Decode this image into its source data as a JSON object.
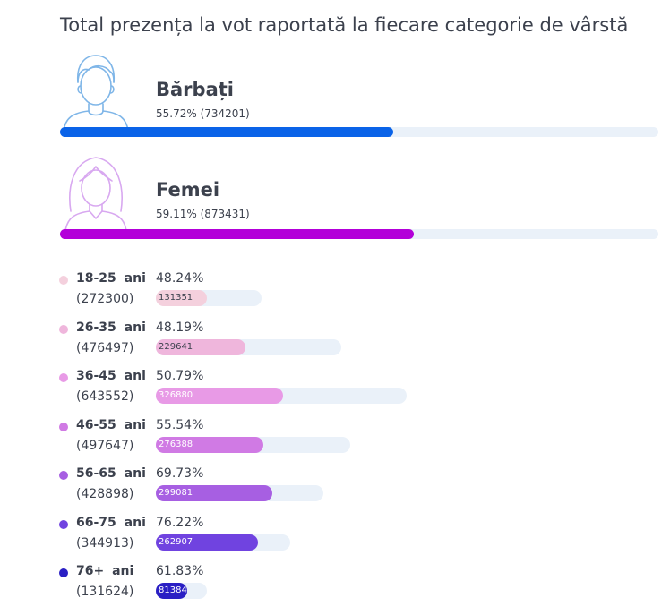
{
  "title": "Total prezența la vot raportată la fiecare categorie de vârstă",
  "colors": {
    "male": "#0a63e8",
    "female": "#b300d9",
    "male_icon": "#7fb6e8",
    "female_icon": "#d8a8f0",
    "track": "#eaf1f9"
  },
  "genders": {
    "male": {
      "name": "Bărbați",
      "stat": "55.72% (734201)",
      "percent": 55.72,
      "icon": "man-icon"
    },
    "female": {
      "name": "Femei",
      "stat": "59.11% (873431)",
      "percent": 59.11,
      "icon": "woman-icon"
    }
  },
  "chart_data": {
    "type": "bar",
    "title": "Total prezența la vot raportată la fiecare categorie de vârstă",
    "categories": [
      "18-25 ani",
      "26-35 ani",
      "36-45 ani",
      "46-55 ani",
      "56-65 ani",
      "66-75 ani",
      "76+ ani"
    ],
    "age_groups": [
      {
        "label": "18-25 ani",
        "percent_label": "48.24%",
        "percent": 48.24,
        "total_label": "(272300)",
        "total": 272300,
        "votes_label": "131351",
        "votes": 131351,
        "color": "#f4d0dd"
      },
      {
        "label": "26-35 ani",
        "percent_label": "48.19%",
        "percent": 48.19,
        "total_label": "(476497)",
        "total": 476497,
        "votes_label": "229641",
        "votes": 229641,
        "color": "#efb6dc"
      },
      {
        "label": "36-45 ani",
        "percent_label": "50.79%",
        "percent": 50.79,
        "total_label": "(643552)",
        "total": 643552,
        "votes_label": "326880",
        "votes": 326880,
        "color": "#e89ae6"
      },
      {
        "label": "46-55 ani",
        "percent_label": "55.54%",
        "percent": 55.54,
        "total_label": "(497647)",
        "total": 497647,
        "votes_label": "276388",
        "votes": 276388,
        "color": "#d07ae4"
      },
      {
        "label": "56-65 ani",
        "percent_label": "69.73%",
        "percent": 69.73,
        "total_label": "(428898)",
        "total": 428898,
        "votes_label": "299081",
        "votes": 299081,
        "color": "#a75fe2"
      },
      {
        "label": "66-75 ani",
        "percent_label": "76.22%",
        "percent": 76.22,
        "total_label": "(344913)",
        "total": 344913,
        "votes_label": "262907",
        "votes": 262907,
        "color": "#7043e0"
      },
      {
        "label": "76+ ani",
        "percent_label": "61.83%",
        "percent": 61.83,
        "total_label": "(131624)",
        "total": 131624,
        "votes_label": "81384",
        "votes": 81384,
        "color": "#2a1fc4"
      }
    ]
  }
}
